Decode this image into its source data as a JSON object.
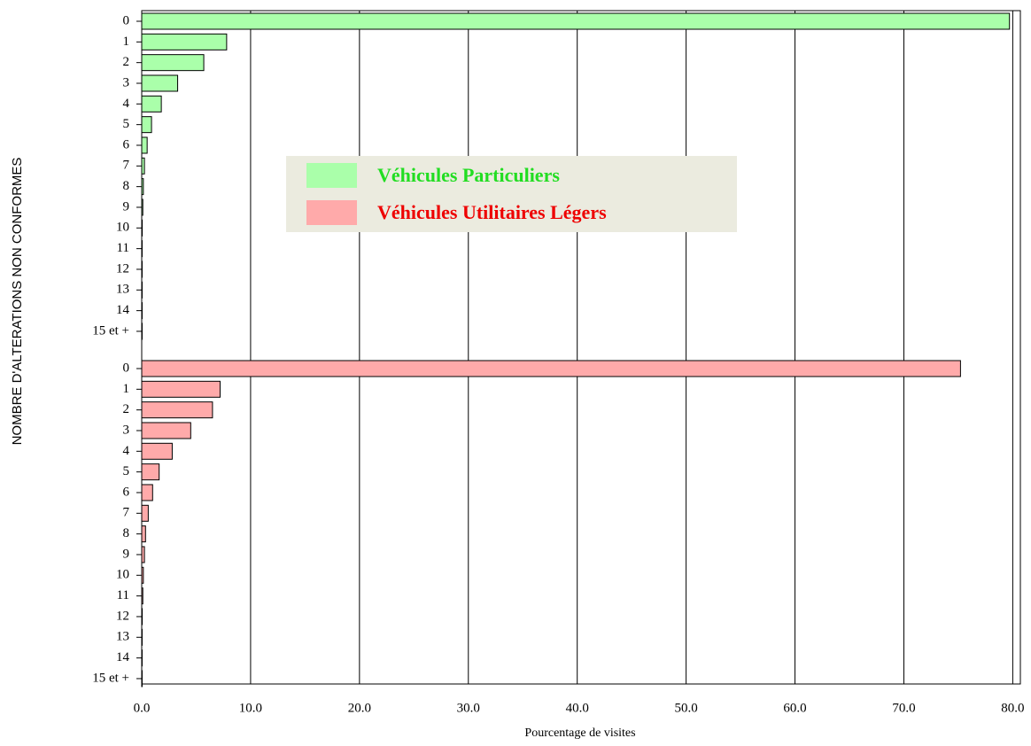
{
  "chart_data": {
    "type": "bar",
    "orientation": "horizontal",
    "y_label": "NOMBRE D'ALTERATIONS  NON CONFORMES",
    "x_label": "Pourcentage de visites",
    "categories": [
      "0",
      "1",
      "2",
      "3",
      "4",
      "5",
      "6",
      "7",
      "8",
      "9",
      "10",
      "11",
      "12",
      "13",
      "14",
      "15 et +"
    ],
    "series": [
      {
        "name": "Véhicules Particuliers",
        "color": "#aaffaa",
        "text_color": "#22dd22",
        "values": [
          79.7,
          7.8,
          5.7,
          3.3,
          1.8,
          0.9,
          0.5,
          0.25,
          0.15,
          0.1,
          0.05,
          0.03,
          0.02,
          0.01,
          0.01,
          0.01
        ]
      },
      {
        "name": "Véhicules Utilitaires Légers",
        "color": "#ffaaaa",
        "text_color": "#ee0000",
        "values": [
          75.2,
          7.2,
          6.5,
          4.5,
          2.8,
          1.6,
          1.0,
          0.6,
          0.35,
          0.25,
          0.15,
          0.1,
          0.05,
          0.03,
          0.02,
          0.02
        ]
      }
    ],
    "xlim": [
      0,
      80.7
    ],
    "xticks": [
      {
        "value": 0,
        "label": "0.0"
      },
      {
        "value": 10,
        "label": "10.0"
      },
      {
        "value": 20,
        "label": "20.0"
      },
      {
        "value": 30,
        "label": "30.0"
      },
      {
        "value": 40,
        "label": "40.0"
      },
      {
        "value": 50,
        "label": "50.0"
      },
      {
        "value": 60,
        "label": "60.0"
      },
      {
        "value": 70,
        "label": "70.0"
      },
      {
        "value": 80,
        "label": "80.0"
      }
    ],
    "grid": true
  }
}
